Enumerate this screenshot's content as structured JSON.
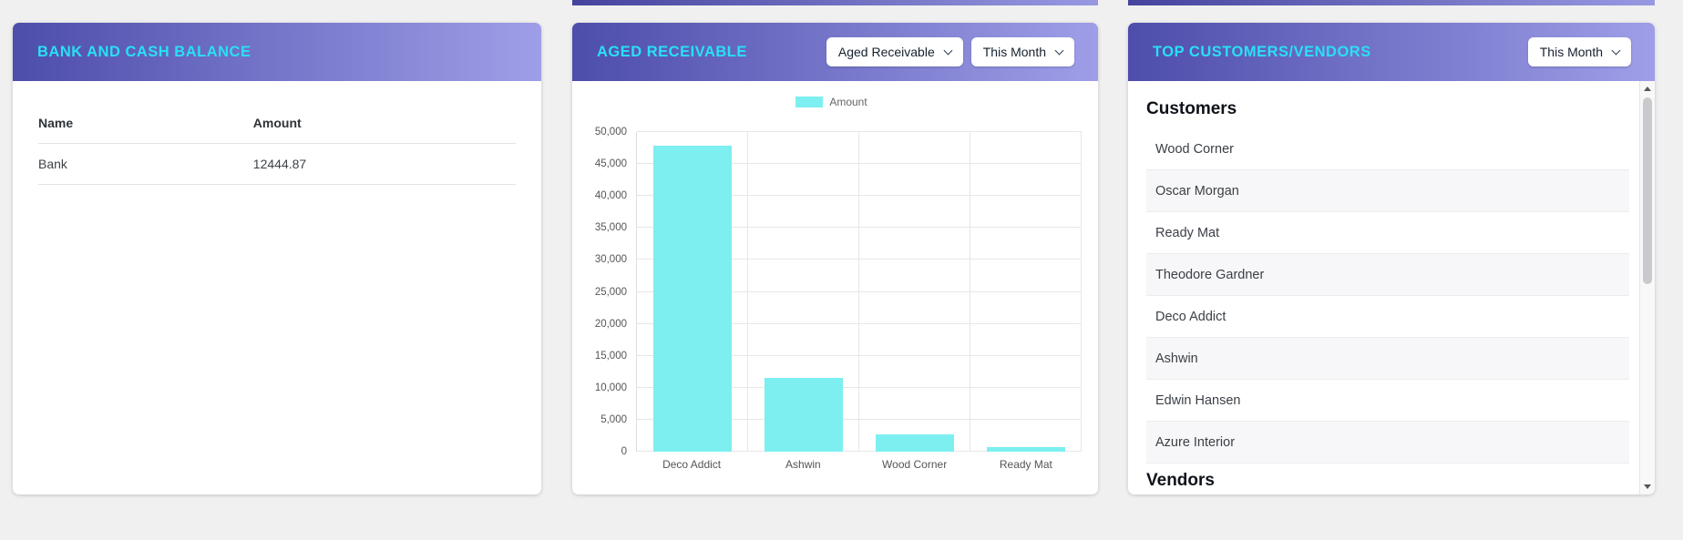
{
  "page": {
    "background": "#f0f0f1",
    "card_header_gradient": [
      "#4d4dab",
      "#9e9ee8"
    ],
    "card_title_color": "#29e0f4",
    "accent_bar_color": "#7deff1"
  },
  "icons": {
    "chevron_down_icon": "chevron-down (css stroke chevron)",
    "scroll_up_icon": "triangle-up",
    "scroll_down_icon": "triangle-down"
  },
  "bank_card": {
    "title": "BANK AND CASH BALANCE",
    "columns": {
      "name": "Name",
      "amount": "Amount"
    },
    "rows": [
      {
        "name": "Bank",
        "amount": "12444.87"
      }
    ]
  },
  "aged_card": {
    "title": "AGED RECEIVABLE",
    "type_filter_label": "Aged Receivable",
    "period_filter_label": "This Month"
  },
  "top_card": {
    "title": "TOP CUSTOMERS/VENDORS",
    "period_filter_label": "This Month",
    "sections": [
      {
        "heading": "Customers",
        "items": [
          "Wood Corner",
          "Oscar Morgan",
          "Ready Mat",
          "Theodore Gardner",
          "Deco Addict",
          "Ashwin",
          "Edwin Hansen",
          "Azure Interior"
        ]
      },
      {
        "heading": "Vendors",
        "items": []
      }
    ]
  },
  "chart_data": {
    "type": "bar",
    "title": "Aged Receivable",
    "categories": [
      "Deco Addict",
      "Ashwin",
      "Wood Corner",
      "Ready Mat"
    ],
    "series": [
      {
        "name": "Amount",
        "values": [
          47800,
          11500,
          2700,
          700
        ]
      }
    ],
    "xlabel": "",
    "ylabel": "",
    "ylim": [
      0,
      50000
    ],
    "ytick_step": 5000,
    "ytick_format": "thousands-comma",
    "grid": true,
    "legend_position": "top",
    "bar_color": "#7deff1"
  }
}
